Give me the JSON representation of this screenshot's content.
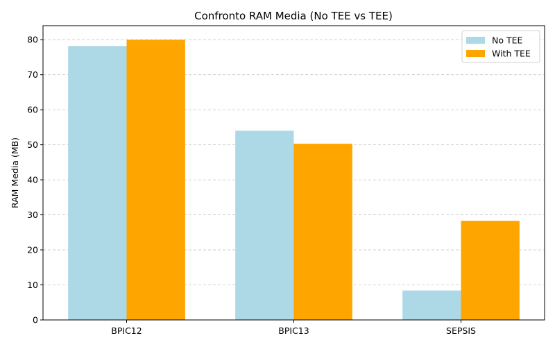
{
  "chart_data": {
    "type": "bar",
    "title": "Confronto RAM Media (No TEE vs TEE)",
    "xlabel": "",
    "ylabel": "RAM Media (MB)",
    "categories": [
      "BPIC12",
      "BPIC13",
      "SEPSIS"
    ],
    "series": [
      {
        "name": "No TEE",
        "values": [
          78.2,
          54.0,
          8.4
        ],
        "color": "#add8e6"
      },
      {
        "name": "With TEE",
        "values": [
          80.0,
          50.3,
          28.3
        ],
        "color": "#ffa500"
      }
    ],
    "ylim": [
      0,
      84
    ],
    "yticks": [
      0,
      10,
      20,
      30,
      40,
      50,
      60,
      70,
      80
    ],
    "grid": "y-dashed",
    "legend_position": "top-right"
  }
}
